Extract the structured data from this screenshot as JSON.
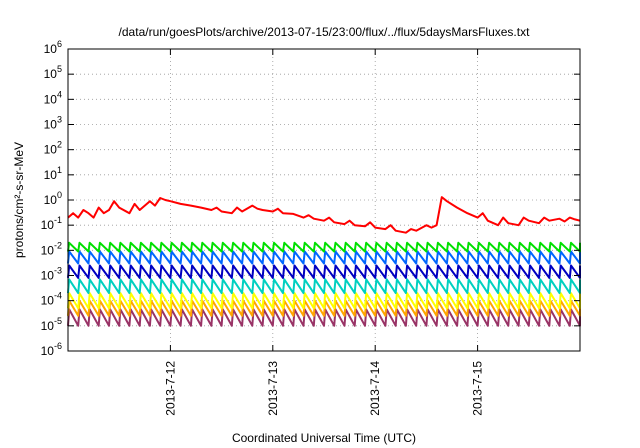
{
  "chart_data": {
    "type": "line",
    "title": "/data/run/goesPlots/archive/2013-07-15/23:00/flux/../flux/5daysMarsFluxes.txt",
    "xlabel": "Coordinated Universal Time (UTC)",
    "ylabel": "protons/cm²-s-sr-MeV",
    "yscale": "log",
    "ylim": [
      1e-06,
      1000000.0
    ],
    "xlim_days": [
      11.0,
      16.0
    ],
    "grid": true,
    "y_ticks": [
      {
        "value": 1e-06,
        "base": "10",
        "exp": "-6"
      },
      {
        "value": 1e-05,
        "base": "10",
        "exp": "-5"
      },
      {
        "value": 0.0001,
        "base": "10",
        "exp": "-4"
      },
      {
        "value": 0.001,
        "base": "10",
        "exp": "-3"
      },
      {
        "value": 0.01,
        "base": "10",
        "exp": "-2"
      },
      {
        "value": 0.1,
        "base": "10",
        "exp": "-1"
      },
      {
        "value": 1.0,
        "base": "10",
        "exp": "0"
      },
      {
        "value": 10.0,
        "base": "10",
        "exp": "1"
      },
      {
        "value": 100.0,
        "base": "10",
        "exp": "2"
      },
      {
        "value": 1000.0,
        "base": "10",
        "exp": "3"
      },
      {
        "value": 10000.0,
        "base": "10",
        "exp": "4"
      },
      {
        "value": 100000.0,
        "base": "10",
        "exp": "5"
      },
      {
        "value": 1000000.0,
        "base": "10",
        "exp": "6"
      }
    ],
    "x_ticks": [
      {
        "value": 12,
        "label": "2013-7-12"
      },
      {
        "value": 13,
        "label": "2013-7-13"
      },
      {
        "value": 14,
        "label": "2013-7-14"
      },
      {
        "value": 15,
        "label": "2013-7-15"
      }
    ],
    "series": [
      {
        "color": "#ff0000",
        "x": [
          11.0,
          11.05,
          11.1,
          11.15,
          11.2,
          11.25,
          11.3,
          11.35,
          11.4,
          11.45,
          11.5,
          11.6,
          11.65,
          11.7,
          11.8,
          11.85,
          11.9,
          11.95,
          12.0,
          12.1,
          12.2,
          12.3,
          12.4,
          12.45,
          12.5,
          12.6,
          12.65,
          12.7,
          12.8,
          12.85,
          12.9,
          13.0,
          13.05,
          13.1,
          13.2,
          13.3,
          13.35,
          13.4,
          13.5,
          13.55,
          13.6,
          13.7,
          13.75,
          13.8,
          13.9,
          13.95,
          14.0,
          14.1,
          14.15,
          14.2,
          14.3,
          14.35,
          14.4,
          14.5,
          14.55,
          14.6,
          14.65,
          14.7,
          14.8,
          14.9,
          15.0,
          15.05,
          15.1,
          15.2,
          15.25,
          15.3,
          15.4,
          15.45,
          15.5,
          15.6,
          15.65,
          15.7,
          15.8,
          15.85,
          15.9,
          15.95,
          16.0
        ],
        "y": [
          0.2,
          0.3,
          0.2,
          0.4,
          0.3,
          0.2,
          0.5,
          0.3,
          0.4,
          0.9,
          0.5,
          0.3,
          0.7,
          0.4,
          0.9,
          0.6,
          1.2,
          1.0,
          0.9,
          0.7,
          0.6,
          0.5,
          0.4,
          0.5,
          0.35,
          0.3,
          0.5,
          0.35,
          0.6,
          0.45,
          0.4,
          0.35,
          0.45,
          0.3,
          0.28,
          0.2,
          0.25,
          0.18,
          0.15,
          0.2,
          0.13,
          0.11,
          0.15,
          0.1,
          0.09,
          0.13,
          0.08,
          0.07,
          0.1,
          0.06,
          0.05,
          0.07,
          0.06,
          0.1,
          0.08,
          0.1,
          1.3,
          0.9,
          0.5,
          0.3,
          0.2,
          0.3,
          0.15,
          0.1,
          0.2,
          0.12,
          0.1,
          0.2,
          0.15,
          0.12,
          0.2,
          0.15,
          0.18,
          0.14,
          0.2,
          0.17,
          0.15
        ]
      }
    ],
    "oscillating_series": [
      {
        "color": "#00e000",
        "high": 0.02,
        "low": 0.009
      },
      {
        "color": "#0066ff",
        "high": 0.009,
        "low": 0.003
      },
      {
        "color": "#0000c0",
        "high": 0.0025,
        "low": 0.0008
      },
      {
        "color": "#00d0c0",
        "high": 0.0007,
        "low": 0.0002
      },
      {
        "color": "#ffff00",
        "high": 0.0002,
        "low": 5e-05
      },
      {
        "color": "#ffa500",
        "high": 0.0001,
        "low": 2.5e-05
      },
      {
        "color": "#993366",
        "high": 4.5e-05,
        "low": 1e-05
      }
    ],
    "oscillation_period_days": 0.1
  }
}
